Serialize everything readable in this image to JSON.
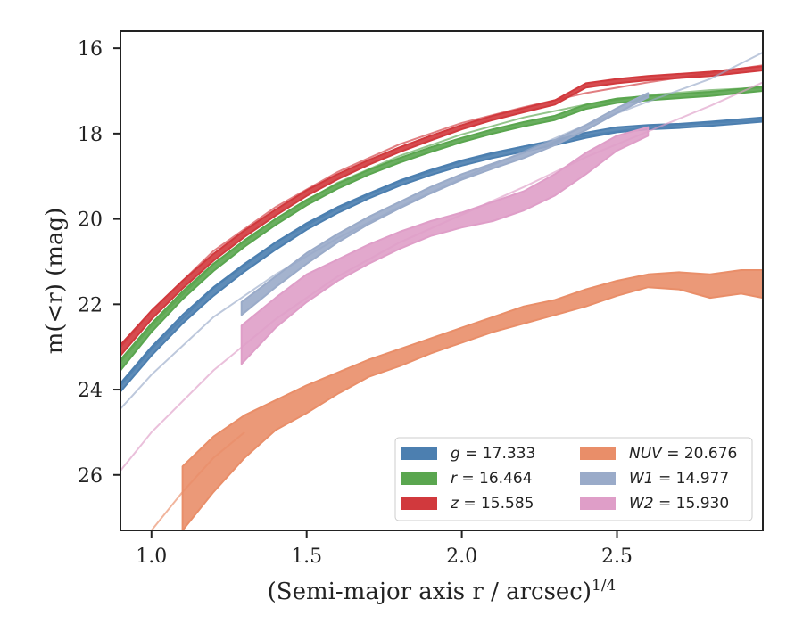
{
  "chart_data": {
    "type": "line",
    "xlabel": "(Semi-major axis r / arcsec)",
    "xlabel_superscript": "1/4",
    "ylabel": "m(<r) (mag)",
    "xlim": [
      0.9,
      2.97
    ],
    "ylim": [
      27.3,
      15.6
    ],
    "y_inverted": true,
    "x_ticks": [
      1.0,
      1.5,
      2.0,
      2.5
    ],
    "x_tick_labels": [
      "1.0",
      "1.5",
      "2.0",
      "2.5"
    ],
    "y_ticks": [
      16,
      18,
      20,
      22,
      24,
      26
    ],
    "y_tick_labels": [
      "16",
      "18",
      "20",
      "22",
      "24",
      "26"
    ],
    "grid": false,
    "legend_position": "lower-right",
    "series": [
      {
        "name": "g = 17.333",
        "color": "#4c7fb0",
        "band": [
          [
            0.9,
            23.85,
            24.05
          ],
          [
            1.0,
            23.0,
            23.2
          ],
          [
            1.1,
            22.25,
            22.45
          ],
          [
            1.2,
            21.6,
            21.8
          ],
          [
            1.3,
            21.05,
            21.23
          ],
          [
            1.4,
            20.55,
            20.72
          ],
          [
            1.5,
            20.1,
            20.25
          ],
          [
            1.6,
            19.72,
            19.86
          ],
          [
            1.7,
            19.4,
            19.52
          ],
          [
            1.8,
            19.1,
            19.22
          ],
          [
            1.9,
            18.85,
            18.97
          ],
          [
            2.0,
            18.63,
            18.75
          ],
          [
            2.1,
            18.45,
            18.57
          ],
          [
            2.2,
            18.3,
            18.42
          ],
          [
            2.3,
            18.15,
            18.27
          ],
          [
            2.4,
            17.98,
            18.1
          ],
          [
            2.5,
            17.85,
            17.97
          ],
          [
            2.6,
            17.8,
            17.9
          ],
          [
            2.7,
            17.77,
            17.87
          ],
          [
            2.8,
            17.72,
            17.82
          ],
          [
            2.97,
            17.62,
            17.72
          ]
        ],
        "model": [
          [
            0.9,
            23.9
          ],
          [
            1.0,
            23.05
          ],
          [
            1.2,
            21.62
          ],
          [
            1.4,
            20.55
          ],
          [
            1.6,
            19.75
          ],
          [
            1.8,
            19.12
          ],
          [
            2.0,
            18.65
          ],
          [
            2.2,
            18.3
          ],
          [
            2.4,
            18.05
          ],
          [
            2.6,
            17.85
          ],
          [
            2.8,
            17.75
          ],
          [
            2.97,
            17.68
          ]
        ]
      },
      {
        "name": "r = 16.464",
        "color": "#5aa64f",
        "band": [
          [
            0.9,
            23.3,
            23.55
          ],
          [
            1.0,
            22.45,
            22.65
          ],
          [
            1.1,
            21.7,
            21.88
          ],
          [
            1.2,
            21.05,
            21.22
          ],
          [
            1.3,
            20.5,
            20.65
          ],
          [
            1.4,
            20.0,
            20.14
          ],
          [
            1.5,
            19.55,
            19.68
          ],
          [
            1.6,
            19.17,
            19.29
          ],
          [
            1.7,
            18.85,
            18.96
          ],
          [
            1.8,
            18.57,
            18.68
          ],
          [
            1.9,
            18.32,
            18.43
          ],
          [
            2.0,
            18.1,
            18.2
          ],
          [
            2.1,
            17.9,
            18.0
          ],
          [
            2.2,
            17.73,
            17.83
          ],
          [
            2.3,
            17.58,
            17.68
          ],
          [
            2.4,
            17.32,
            17.42
          ],
          [
            2.5,
            17.18,
            17.28
          ],
          [
            2.6,
            17.12,
            17.22
          ],
          [
            2.7,
            17.07,
            17.17
          ],
          [
            2.8,
            17.02,
            17.12
          ],
          [
            2.97,
            16.9,
            17.0
          ]
        ],
        "model": [
          [
            0.9,
            23.35
          ],
          [
            1.0,
            22.5
          ],
          [
            1.2,
            21.05
          ],
          [
            1.4,
            20.0
          ],
          [
            1.6,
            19.15
          ],
          [
            1.8,
            18.52
          ],
          [
            2.0,
            18.02
          ],
          [
            2.2,
            17.62
          ],
          [
            2.4,
            17.32
          ],
          [
            2.6,
            17.1
          ],
          [
            2.8,
            16.98
          ],
          [
            2.97,
            16.92
          ]
        ]
      },
      {
        "name": "z = 15.585",
        "color": "#d1393d",
        "band": [
          [
            0.9,
            22.95,
            23.2
          ],
          [
            1.0,
            22.15,
            22.35
          ],
          [
            1.1,
            21.45,
            21.63
          ],
          [
            1.2,
            20.82,
            20.98
          ],
          [
            1.3,
            20.27,
            20.42
          ],
          [
            1.4,
            19.78,
            19.92
          ],
          [
            1.5,
            19.33,
            19.46
          ],
          [
            1.6,
            18.95,
            19.07
          ],
          [
            1.7,
            18.62,
            18.73
          ],
          [
            1.8,
            18.32,
            18.43
          ],
          [
            1.9,
            18.05,
            18.16
          ],
          [
            2.0,
            17.8,
            17.9
          ],
          [
            2.1,
            17.58,
            17.68
          ],
          [
            2.2,
            17.4,
            17.5
          ],
          [
            2.3,
            17.22,
            17.32
          ],
          [
            2.4,
            16.82,
            16.92
          ],
          [
            2.5,
            16.72,
            16.82
          ],
          [
            2.6,
            16.65,
            16.75
          ],
          [
            2.7,
            16.6,
            16.7
          ],
          [
            2.8,
            16.55,
            16.65
          ],
          [
            2.97,
            16.42,
            16.52
          ]
        ],
        "model": [
          [
            0.9,
            23.0
          ],
          [
            1.0,
            22.15
          ],
          [
            1.2,
            20.75
          ],
          [
            1.4,
            19.72
          ],
          [
            1.6,
            18.9
          ],
          [
            1.8,
            18.25
          ],
          [
            2.0,
            17.75
          ],
          [
            2.2,
            17.38
          ],
          [
            2.4,
            17.05
          ],
          [
            2.6,
            16.8
          ],
          [
            2.8,
            16.58
          ],
          [
            2.97,
            16.4
          ]
        ]
      },
      {
        "name": "NUV = 20.676",
        "color": "#e98e69",
        "name_italic": "NUV",
        "band": [
          [
            1.1,
            25.8,
            27.3
          ],
          [
            1.2,
            25.1,
            26.4
          ],
          [
            1.3,
            24.6,
            25.6
          ],
          [
            1.4,
            24.25,
            24.95
          ],
          [
            1.5,
            23.9,
            24.55
          ],
          [
            1.6,
            23.6,
            24.1
          ],
          [
            1.7,
            23.3,
            23.7
          ],
          [
            1.8,
            23.05,
            23.45
          ],
          [
            1.9,
            22.8,
            23.15
          ],
          [
            2.0,
            22.55,
            22.9
          ],
          [
            2.1,
            22.3,
            22.65
          ],
          [
            2.2,
            22.05,
            22.45
          ],
          [
            2.3,
            21.9,
            22.25
          ],
          [
            2.4,
            21.65,
            22.05
          ],
          [
            2.5,
            21.45,
            21.8
          ],
          [
            2.6,
            21.3,
            21.6
          ],
          [
            2.7,
            21.25,
            21.65
          ],
          [
            2.8,
            21.3,
            21.85
          ],
          [
            2.9,
            21.2,
            21.75
          ],
          [
            2.97,
            21.2,
            21.85
          ]
        ],
        "model": [
          [
            1.0,
            27.3
          ],
          [
            1.1,
            26.4
          ],
          [
            1.2,
            25.6
          ],
          [
            1.3,
            25.0
          ]
        ]
      },
      {
        "name": "W1 = 14.977",
        "color": "#9aabc9",
        "name_italic": "W1",
        "band": [
          [
            1.29,
            21.95,
            22.25
          ],
          [
            1.4,
            21.35,
            21.6
          ],
          [
            1.5,
            20.8,
            21.05
          ],
          [
            1.6,
            20.35,
            20.55
          ],
          [
            1.7,
            19.95,
            20.12
          ],
          [
            1.8,
            19.6,
            19.75
          ],
          [
            1.9,
            19.25,
            19.4
          ],
          [
            2.0,
            18.95,
            19.08
          ],
          [
            2.1,
            18.7,
            18.82
          ],
          [
            2.2,
            18.45,
            18.57
          ],
          [
            2.3,
            18.15,
            18.27
          ],
          [
            2.4,
            17.8,
            17.92
          ],
          [
            2.5,
            17.4,
            17.52
          ],
          [
            2.6,
            17.05,
            17.15
          ]
        ],
        "model": [
          [
            0.9,
            24.45
          ],
          [
            1.0,
            23.65
          ],
          [
            1.2,
            22.3
          ],
          [
            1.4,
            21.3
          ],
          [
            1.6,
            20.45
          ],
          [
            1.8,
            19.72
          ],
          [
            2.0,
            19.05
          ],
          [
            2.2,
            18.42
          ],
          [
            2.4,
            17.8
          ],
          [
            2.6,
            17.25
          ],
          [
            2.8,
            16.72
          ],
          [
            2.97,
            16.1
          ]
        ]
      },
      {
        "name": "W2 = 15.930",
        "color": "#df9ec8",
        "name_italic": "W2",
        "band": [
          [
            1.29,
            22.5,
            23.4
          ],
          [
            1.4,
            21.85,
            22.55
          ],
          [
            1.5,
            21.3,
            21.95
          ],
          [
            1.6,
            20.95,
            21.45
          ],
          [
            1.7,
            20.6,
            21.05
          ],
          [
            1.8,
            20.3,
            20.7
          ],
          [
            1.9,
            20.05,
            20.4
          ],
          [
            2.0,
            19.85,
            20.2
          ],
          [
            2.1,
            19.6,
            20.05
          ],
          [
            2.2,
            19.35,
            19.8
          ],
          [
            2.3,
            18.95,
            19.45
          ],
          [
            2.4,
            18.45,
            18.95
          ],
          [
            2.5,
            18.05,
            18.4
          ],
          [
            2.6,
            17.85,
            18.05
          ]
        ],
        "model": [
          [
            0.9,
            25.9
          ],
          [
            1.0,
            25.0
          ],
          [
            1.2,
            23.55
          ],
          [
            1.4,
            22.35
          ],
          [
            1.6,
            21.35
          ],
          [
            1.8,
            20.55
          ],
          [
            2.0,
            19.9
          ],
          [
            2.2,
            19.25
          ],
          [
            2.4,
            18.55
          ],
          [
            2.6,
            17.95
          ],
          [
            2.8,
            17.35
          ],
          [
            2.97,
            16.8
          ]
        ]
      }
    ]
  }
}
